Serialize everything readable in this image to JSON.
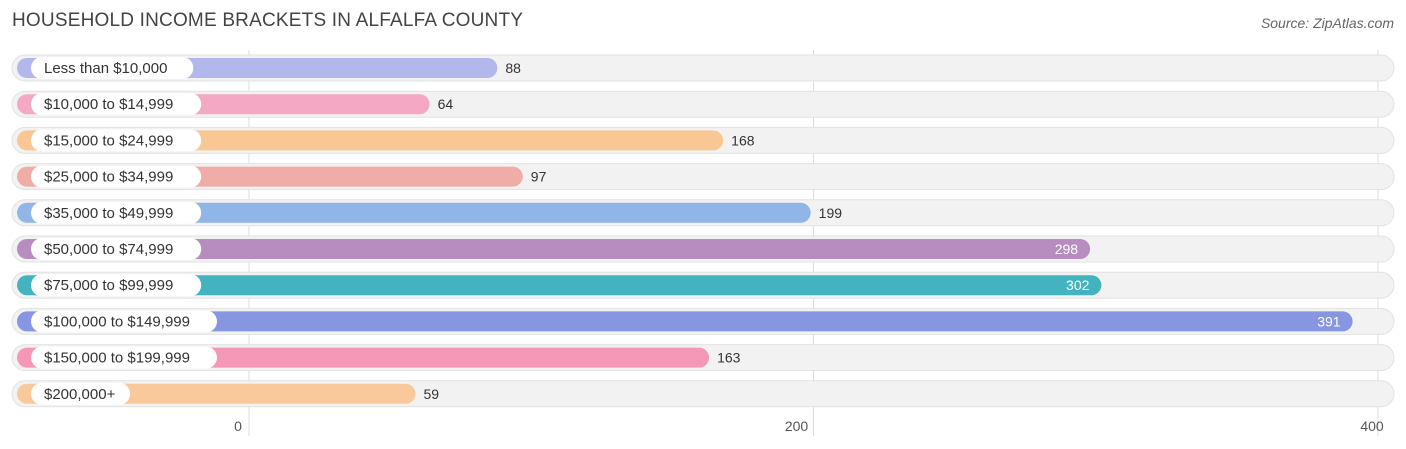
{
  "title": "HOUSEHOLD INCOME BRACKETS IN ALFALFA COUNTY",
  "source": "Source: ZipAtlas.com",
  "chart_data": {
    "type": "bar",
    "orientation": "horizontal",
    "title": "HOUSEHOLD INCOME BRACKETS IN ALFALFA COUNTY",
    "categories": [
      "Less than $10,000",
      "$10,000 to $14,999",
      "$15,000 to $24,999",
      "$25,000 to $34,999",
      "$35,000 to $49,999",
      "$50,000 to $74,999",
      "$75,000 to $99,999",
      "$100,000 to $149,999",
      "$150,000 to $199,999",
      "$200,000+"
    ],
    "values": [
      88,
      64,
      168,
      97,
      199,
      298,
      302,
      391,
      163,
      59
    ],
    "colors": [
      "#b3b8ec",
      "#f5a8c4",
      "#f9c794",
      "#f0aca7",
      "#8fb6e6",
      "#b78cbf",
      "#43b3bf",
      "#8696e0",
      "#f597b6",
      "#f9c99b"
    ],
    "xlim": [
      0,
      400
    ],
    "xticks": [
      0,
      200,
      400
    ],
    "xlabel": "",
    "ylabel": "",
    "grid": true
  }
}
